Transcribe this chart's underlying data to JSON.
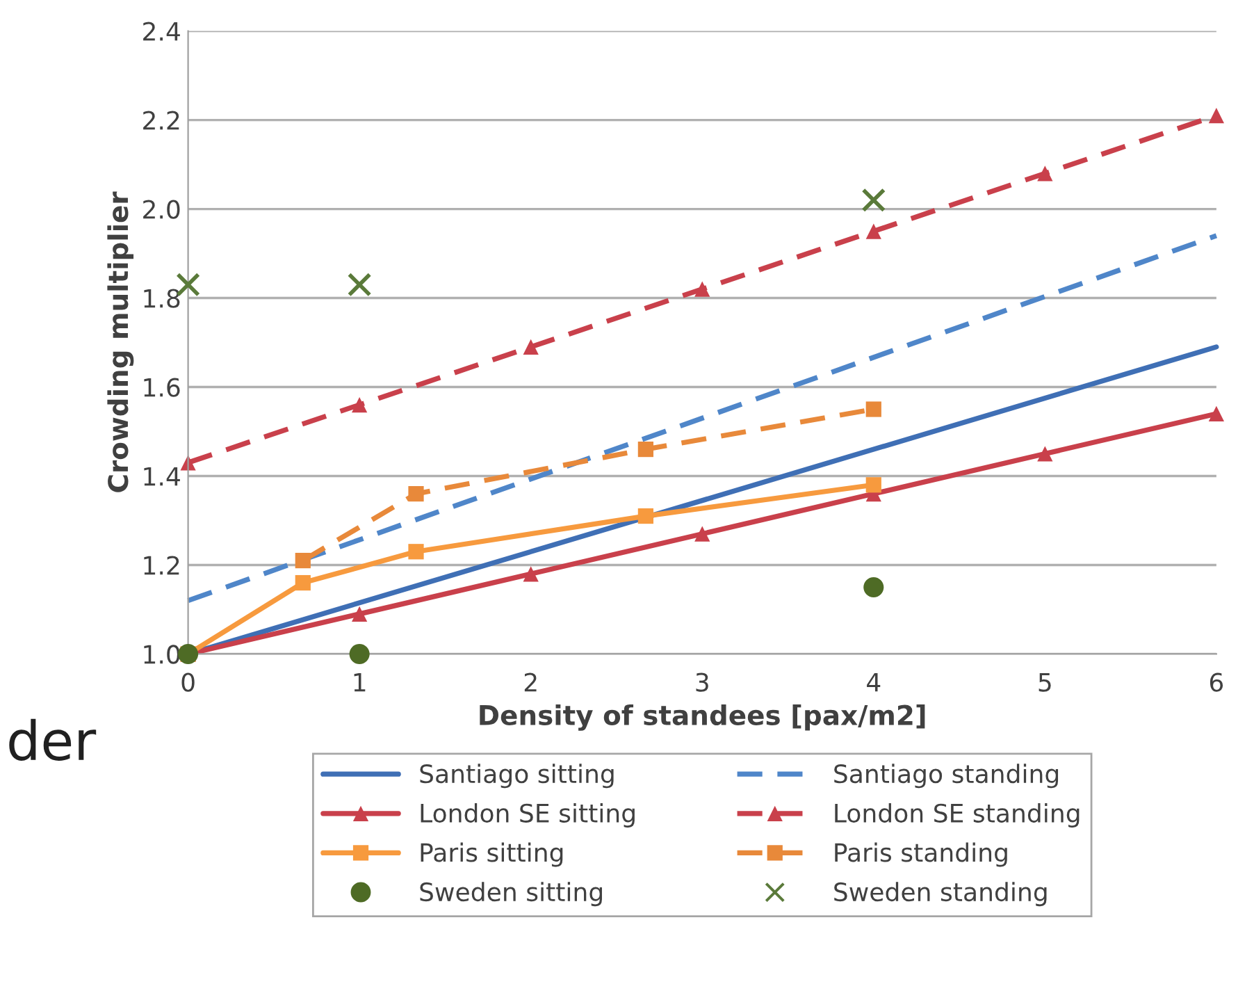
{
  "chart_data": {
    "type": "line",
    "xlabel": "Density of standees [pax/m2]",
    "ylabel": "Crowding multiplier",
    "xlim": [
      0,
      6
    ],
    "xticks": [
      0,
      1,
      2,
      3,
      4,
      5,
      6
    ],
    "ylim": [
      1.0,
      2.4
    ],
    "yticks": [
      {
        "value": 1.0,
        "label": "1.0"
      },
      {
        "value": 1.2,
        "label": "1.2"
      },
      {
        "value": 1.4,
        "label": "1.4"
      },
      {
        "value": 1.6,
        "label": "1.6"
      },
      {
        "value": 1.8,
        "label": "1.8"
      },
      {
        "value": 2.0,
        "label": "2.0"
      },
      {
        "value": 2.2,
        "label": "2.2"
      },
      {
        "value": 2.4,
        "label": "2.4"
      }
    ],
    "grid": "y",
    "legend": "bottom",
    "annotations": [
      "der"
    ],
    "series": [
      {
        "name": "Santiago sitting",
        "color": "#3f6fb5",
        "line_style": "solid",
        "marker": "none",
        "x": [
          0,
          6
        ],
        "values": [
          1.0,
          1.69
        ]
      },
      {
        "name": "Santiago standing",
        "color": "#4f86c9",
        "line_style": "dashed",
        "marker": "none",
        "x": [
          0,
          6
        ],
        "values": [
          1.12,
          1.94
        ]
      },
      {
        "name": "London SE sitting",
        "color": "#c9404b",
        "line_style": "solid",
        "marker": "triangle",
        "x": [
          0,
          1,
          2,
          3,
          4,
          5,
          6
        ],
        "values": [
          1.0,
          1.09,
          1.18,
          1.27,
          1.36,
          1.45,
          1.54
        ]
      },
      {
        "name": "London SE standing",
        "color": "#c9404b",
        "line_style": "dashed",
        "marker": "triangle",
        "x": [
          0,
          1,
          2,
          3,
          4,
          5,
          6
        ],
        "values": [
          1.43,
          1.56,
          1.69,
          1.82,
          1.95,
          2.08,
          2.21
        ]
      },
      {
        "name": "Paris sitting",
        "color": "#f79a3e",
        "line_style": "solid",
        "marker": "square",
        "x": [
          0,
          0.67,
          1.33,
          2.67,
          4
        ],
        "values": [
          1.0,
          1.16,
          1.23,
          1.31,
          1.38
        ]
      },
      {
        "name": "Paris standing",
        "color": "#e8893a",
        "line_style": "dashed",
        "marker": "square",
        "x": [
          0.67,
          1.33,
          2.67,
          4
        ],
        "values": [
          1.21,
          1.36,
          1.46,
          1.55
        ]
      },
      {
        "name": "Sweden sitting",
        "color": "#4e6b25",
        "type": "scatter",
        "marker": "circle",
        "x": [
          0,
          1,
          4
        ],
        "values": [
          1.0,
          1.0,
          1.15
        ]
      },
      {
        "name": "Sweden standing",
        "color": "#5a7a3a",
        "type": "scatter",
        "marker": "cross",
        "x": [
          0,
          1,
          4
        ],
        "values": [
          1.83,
          1.83,
          2.02
        ]
      }
    ]
  }
}
